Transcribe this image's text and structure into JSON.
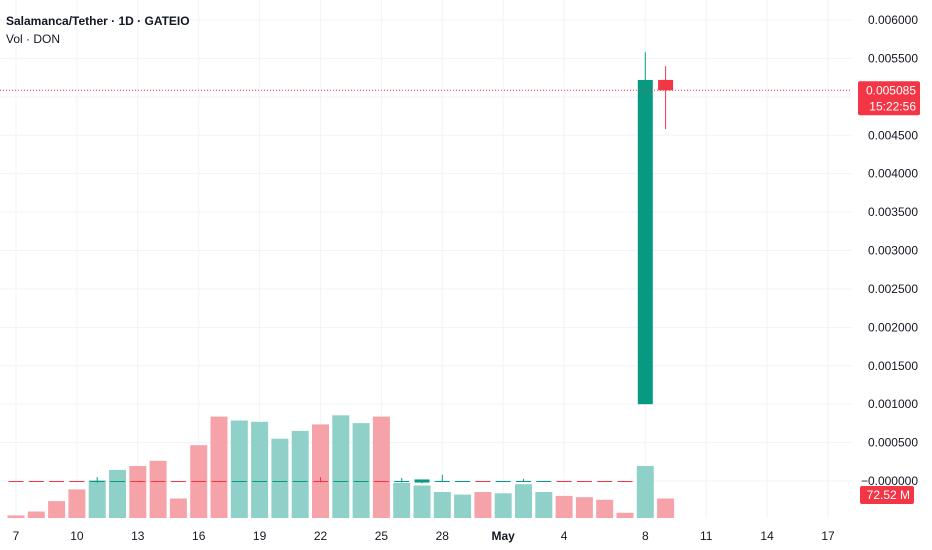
{
  "legend": {
    "title": "Salamanca/Tether · 1D · GATEIO",
    "indicator": "Vol · DON"
  },
  "colors": {
    "up": "#089981",
    "down": "#f23645",
    "vol_up": "#8fd1c8",
    "vol_down": "#f5a3a8",
    "grid": "#f0f3fa"
  },
  "price_badge": {
    "value": "0.005085",
    "countdown": "15:22:56"
  },
  "volume_badge": {
    "value": "72.52 M"
  },
  "chart_data": {
    "type": "candlestick",
    "title": "Salamanca/Tether · 1D · GATEIO",
    "y_axis": {
      "ticks": [
        "0.006000",
        "0.005500",
        "0.005000",
        "0.004500",
        "0.004000",
        "0.003500",
        "0.003000",
        "0.002500",
        "0.002000",
        "0.001500",
        "0.001000",
        "0.000500",
        "−0.000000"
      ],
      "range": [
        -8e-05,
        0.00625
      ],
      "position": "right"
    },
    "x_axis": {
      "tick_labels": [
        "7",
        "10",
        "13",
        "16",
        "19",
        "22",
        "25",
        "28",
        "May",
        "4",
        "8",
        "11",
        "14",
        "17"
      ],
      "tick_days": [
        0,
        3,
        6,
        9,
        12,
        15,
        18,
        21,
        24,
        27,
        31,
        34,
        37,
        40
      ]
    },
    "candles": [
      {
        "day": 0,
        "o": 0.0,
        "h": 0.0,
        "l": 0.0,
        "c": 0.0,
        "dir": "down"
      },
      {
        "day": 1,
        "o": 0.0,
        "h": 0.0,
        "l": 0.0,
        "c": 0.0,
        "dir": "down"
      },
      {
        "day": 2,
        "o": 0.0,
        "h": 0.0,
        "l": 0.0,
        "c": 0.0,
        "dir": "down"
      },
      {
        "day": 3,
        "o": 0.0,
        "h": 0.0,
        "l": 0.0,
        "c": 0.0,
        "dir": "down"
      },
      {
        "day": 4,
        "o": 0.0,
        "h": 5e-05,
        "l": -2e-05,
        "c": 0.0,
        "dir": "up"
      },
      {
        "day": 5,
        "o": 0.0,
        "h": 0.0,
        "l": 0.0,
        "c": 0.0,
        "dir": "up"
      },
      {
        "day": 6,
        "o": 0.0,
        "h": 0.0,
        "l": 0.0,
        "c": 0.0,
        "dir": "down"
      },
      {
        "day": 7,
        "o": 0.0,
        "h": 0.0,
        "l": 0.0,
        "c": 0.0,
        "dir": "down"
      },
      {
        "day": 8,
        "o": 0.0,
        "h": 0.0,
        "l": 0.0,
        "c": 0.0,
        "dir": "down"
      },
      {
        "day": 9,
        "o": 0.0,
        "h": 0.0,
        "l": 0.0,
        "c": 0.0,
        "dir": "down"
      },
      {
        "day": 10,
        "o": 0.0,
        "h": 0.0,
        "l": 0.0,
        "c": 0.0,
        "dir": "down"
      },
      {
        "day": 11,
        "o": 0.0,
        "h": 0.0,
        "l": 0.0,
        "c": 0.0,
        "dir": "up"
      },
      {
        "day": 12,
        "o": 0.0,
        "h": 0.0,
        "l": 0.0,
        "c": 0.0,
        "dir": "up"
      },
      {
        "day": 13,
        "o": 0.0,
        "h": 0.0,
        "l": 0.0,
        "c": 0.0,
        "dir": "up"
      },
      {
        "day": 14,
        "o": 0.0,
        "h": 0.0,
        "l": 0.0,
        "c": 0.0,
        "dir": "up"
      },
      {
        "day": 15,
        "o": 0.0,
        "h": 5e-05,
        "l": -2e-05,
        "c": 0.0,
        "dir": "down"
      },
      {
        "day": 16,
        "o": 0.0,
        "h": 0.0,
        "l": 0.0,
        "c": 0.0,
        "dir": "up"
      },
      {
        "day": 17,
        "o": 0.0,
        "h": 0.0,
        "l": 0.0,
        "c": 0.0,
        "dir": "up"
      },
      {
        "day": 18,
        "o": 0.0,
        "h": 0.0,
        "l": 0.0,
        "c": 0.0,
        "dir": "down"
      },
      {
        "day": 19,
        "o": 0.0,
        "h": 4e-05,
        "l": -2e-05,
        "c": 0.0,
        "dir": "up"
      },
      {
        "day": 20,
        "o": -2e-05,
        "h": 1e-05,
        "l": -3e-05,
        "c": 2e-05,
        "dir": "up"
      },
      {
        "day": 21,
        "o": 0.0,
        "h": 8e-05,
        "l": -1e-05,
        "c": 0.0,
        "dir": "up"
      },
      {
        "day": 22,
        "o": 0.0,
        "h": 0.0,
        "l": 0.0,
        "c": 0.0,
        "dir": "up"
      },
      {
        "day": 23,
        "o": 0.0,
        "h": 0.0,
        "l": 0.0,
        "c": 0.0,
        "dir": "down"
      },
      {
        "day": 24,
        "o": 0.0,
        "h": 0.0,
        "l": 0.0,
        "c": 0.0,
        "dir": "up"
      },
      {
        "day": 25,
        "o": 0.0,
        "h": 3e-05,
        "l": -1e-05,
        "c": 0.0,
        "dir": "up"
      },
      {
        "day": 26,
        "o": 0.0,
        "h": 0.0,
        "l": 0.0,
        "c": 0.0,
        "dir": "up"
      },
      {
        "day": 27,
        "o": 0.0,
        "h": 0.0,
        "l": 0.0,
        "c": 0.0,
        "dir": "down"
      },
      {
        "day": 28,
        "o": 0.0,
        "h": 0.0,
        "l": 0.0,
        "c": 0.0,
        "dir": "down"
      },
      {
        "day": 29,
        "o": 0.0,
        "h": 0.0,
        "l": 0.0,
        "c": 0.0,
        "dir": "down"
      },
      {
        "day": 30,
        "o": 0.0,
        "h": 0.0,
        "l": 0.0,
        "c": 0.0,
        "dir": "down"
      },
      {
        "day": 31,
        "o": 0.001,
        "h": 0.00558,
        "l": 0.001,
        "c": 0.00522,
        "dir": "up"
      },
      {
        "day": 32,
        "o": 0.00522,
        "h": 0.0054,
        "l": 0.00458,
        "c": 0.005085,
        "dir": "down"
      }
    ],
    "volume": [
      {
        "day": 0,
        "v": 0.02,
        "dir": "down"
      },
      {
        "day": 1,
        "v": 0.05,
        "dir": "down"
      },
      {
        "day": 2,
        "v": 0.13,
        "dir": "down"
      },
      {
        "day": 3,
        "v": 0.22,
        "dir": "down"
      },
      {
        "day": 4,
        "v": 0.29,
        "dir": "up"
      },
      {
        "day": 5,
        "v": 0.37,
        "dir": "up"
      },
      {
        "day": 6,
        "v": 0.4,
        "dir": "down"
      },
      {
        "day": 7,
        "v": 0.44,
        "dir": "down"
      },
      {
        "day": 8,
        "v": 0.15,
        "dir": "down"
      },
      {
        "day": 9,
        "v": 0.56,
        "dir": "down"
      },
      {
        "day": 10,
        "v": 0.78,
        "dir": "down"
      },
      {
        "day": 11,
        "v": 0.75,
        "dir": "up"
      },
      {
        "day": 12,
        "v": 0.74,
        "dir": "up"
      },
      {
        "day": 13,
        "v": 0.61,
        "dir": "up"
      },
      {
        "day": 14,
        "v": 0.67,
        "dir": "up"
      },
      {
        "day": 15,
        "v": 0.72,
        "dir": "down"
      },
      {
        "day": 16,
        "v": 0.79,
        "dir": "up"
      },
      {
        "day": 17,
        "v": 0.73,
        "dir": "up"
      },
      {
        "day": 18,
        "v": 0.78,
        "dir": "down"
      },
      {
        "day": 19,
        "v": 0.27,
        "dir": "up"
      },
      {
        "day": 20,
        "v": 0.25,
        "dir": "up"
      },
      {
        "day": 21,
        "v": 0.2,
        "dir": "up"
      },
      {
        "day": 22,
        "v": 0.18,
        "dir": "up"
      },
      {
        "day": 23,
        "v": 0.2,
        "dir": "down"
      },
      {
        "day": 24,
        "v": 0.19,
        "dir": "up"
      },
      {
        "day": 25,
        "v": 0.26,
        "dir": "up"
      },
      {
        "day": 26,
        "v": 0.2,
        "dir": "up"
      },
      {
        "day": 27,
        "v": 0.17,
        "dir": "down"
      },
      {
        "day": 28,
        "v": 0.16,
        "dir": "down"
      },
      {
        "day": 29,
        "v": 0.14,
        "dir": "down"
      },
      {
        "day": 30,
        "v": 0.04,
        "dir": "down"
      },
      {
        "day": 31,
        "v": 0.4,
        "dir": "up"
      },
      {
        "day": 32,
        "v": 0.15,
        "dir": "down"
      }
    ],
    "volume_scale_max": 1.0,
    "last_price": 0.005085,
    "grid": true
  }
}
